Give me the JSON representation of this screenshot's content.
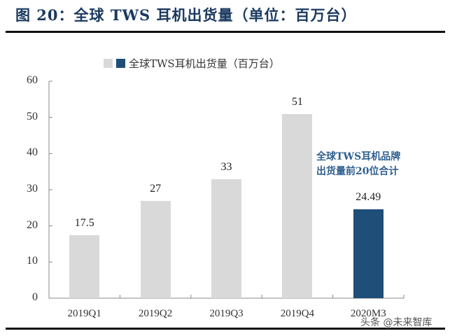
{
  "figure": {
    "title": "图 20：全球 TWS 耳机出货量（单位：百万台）",
    "watermark": "头条 @未来智库"
  },
  "legend": {
    "items": [
      {
        "label": "",
        "color": "#d9d9d9"
      },
      {
        "label": "全球TWS耳机出货量（百万台）",
        "color": "#1f4e79"
      }
    ]
  },
  "annotation": {
    "line1": "全球TWS耳机品牌",
    "line2": "出货量前20位合计"
  },
  "colors": {
    "bar_default": "#d9d9d9",
    "bar_highlight": "#1f4e79",
    "title": "#1b3a60",
    "annotation": "#2f5f8f",
    "axis": "#888888"
  },
  "axis": {
    "y_ticks": [
      "0",
      "10",
      "20",
      "30",
      "40",
      "50",
      "60"
    ]
  },
  "chart_data": {
    "type": "bar",
    "title": "全球 TWS 耳机出货量（单位：百万台）",
    "xlabel": "",
    "ylabel": "",
    "ylim": [
      0,
      60
    ],
    "yticks": [
      0,
      10,
      20,
      30,
      40,
      50,
      60
    ],
    "grid": false,
    "legend_position": "top",
    "categories": [
      "2019Q1",
      "2019Q2",
      "2019Q3",
      "2019Q4",
      "2020M3"
    ],
    "series": [
      {
        "name": "全球TWS耳机出货量（百万台）",
        "values": [
          17.5,
          27,
          33,
          51,
          24.49
        ]
      }
    ],
    "value_labels": [
      "17.5",
      "27",
      "33",
      "51",
      "24.49"
    ],
    "bar_colors": [
      "#d9d9d9",
      "#d9d9d9",
      "#d9d9d9",
      "#d9d9d9",
      "#1f4e79"
    ],
    "annotations": [
      "全球TWS耳机品牌出货量前20位合计 (2020M3)"
    ]
  }
}
